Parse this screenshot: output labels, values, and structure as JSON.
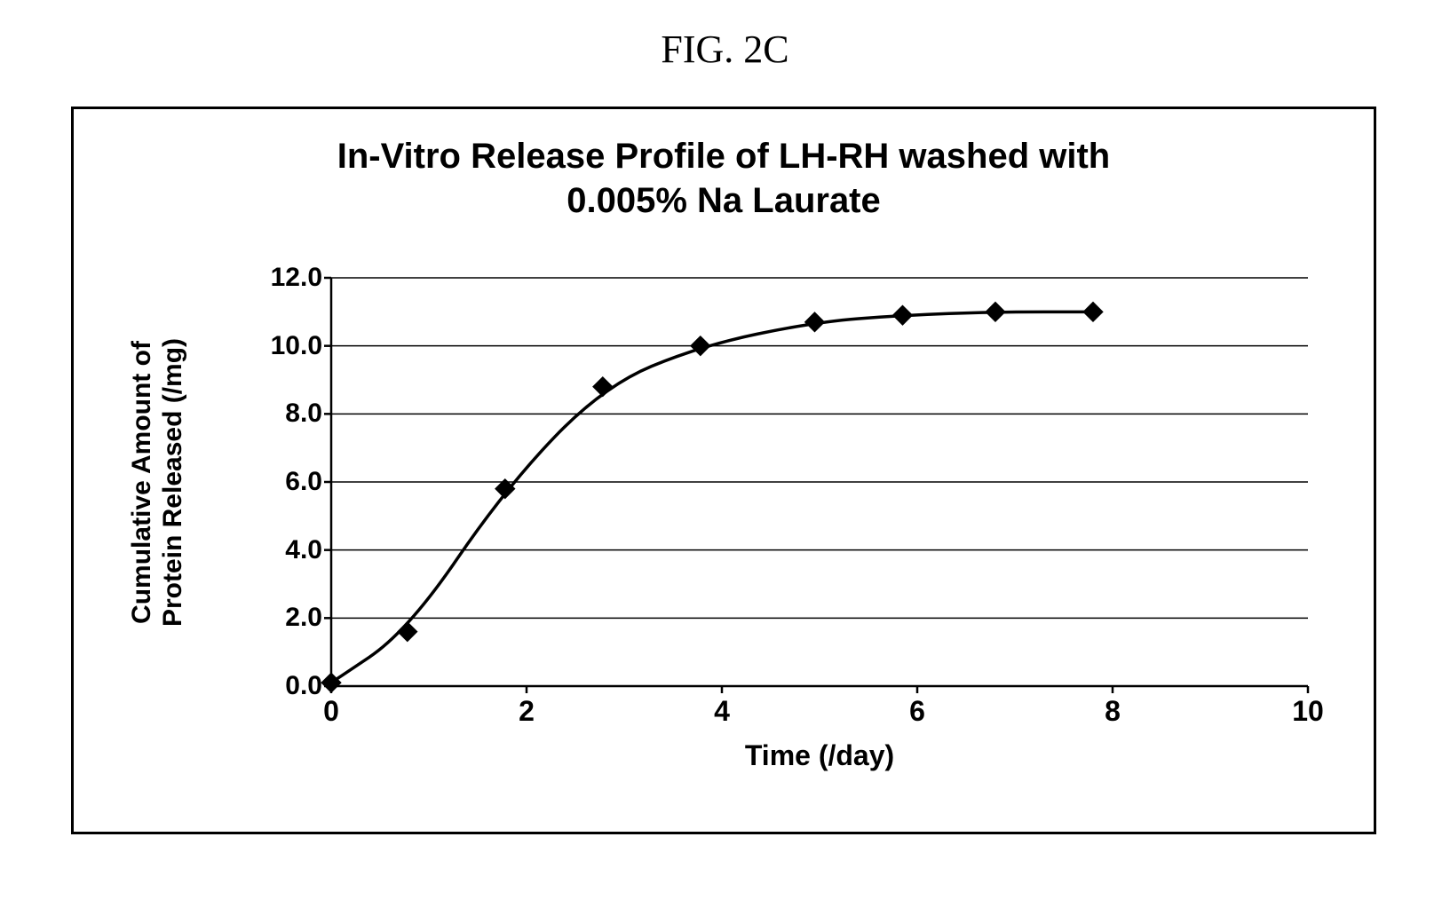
{
  "figure_label": "FIG. 2C",
  "chart": {
    "type": "line",
    "title_line1": "In-Vitro Release Profile of LH-RH washed with",
    "title_line2": "0.005% Na Laurate",
    "title_fontsize": 40,
    "title_fontweight": "bold",
    "xlabel": "Time (/day)",
    "ylabel_line1": "Cumulative Amount of",
    "ylabel_line2": "Protein Released (/mg)",
    "axis_label_fontsize": 30,
    "axis_label_fontweight": "bold",
    "tick_fontsize": 30,
    "tick_fontweight": "bold",
    "xlim": [
      0,
      10
    ],
    "ylim": [
      0,
      12
    ],
    "xticks": [
      0,
      2,
      4,
      6,
      8,
      10
    ],
    "yticks": [
      0.0,
      2.0,
      4.0,
      6.0,
      8.0,
      10.0,
      12.0
    ],
    "ytick_labels": [
      "0.0",
      "2.0",
      "4.0",
      "6.0",
      "8.0",
      "10.0",
      "12.0"
    ],
    "xtick_labels": [
      "0",
      "2",
      "4",
      "6",
      "8",
      "10"
    ],
    "grid_color": "#000000",
    "grid_width": 1.5,
    "axis_color": "#000000",
    "axis_width": 2.5,
    "background_color": "#ffffff",
    "line_color": "#000000",
    "line_width": 3.5,
    "marker_style": "diamond",
    "marker_size": 11,
    "marker_color": "#000000",
    "tick_mark_length": 8,
    "data": {
      "x": [
        0.0,
        0.78,
        1.78,
        2.78,
        3.78,
        4.95,
        5.85,
        6.8,
        7.8
      ],
      "y": [
        0.1,
        1.6,
        5.8,
        8.8,
        10.0,
        10.7,
        10.9,
        11.0,
        11.0
      ]
    }
  }
}
